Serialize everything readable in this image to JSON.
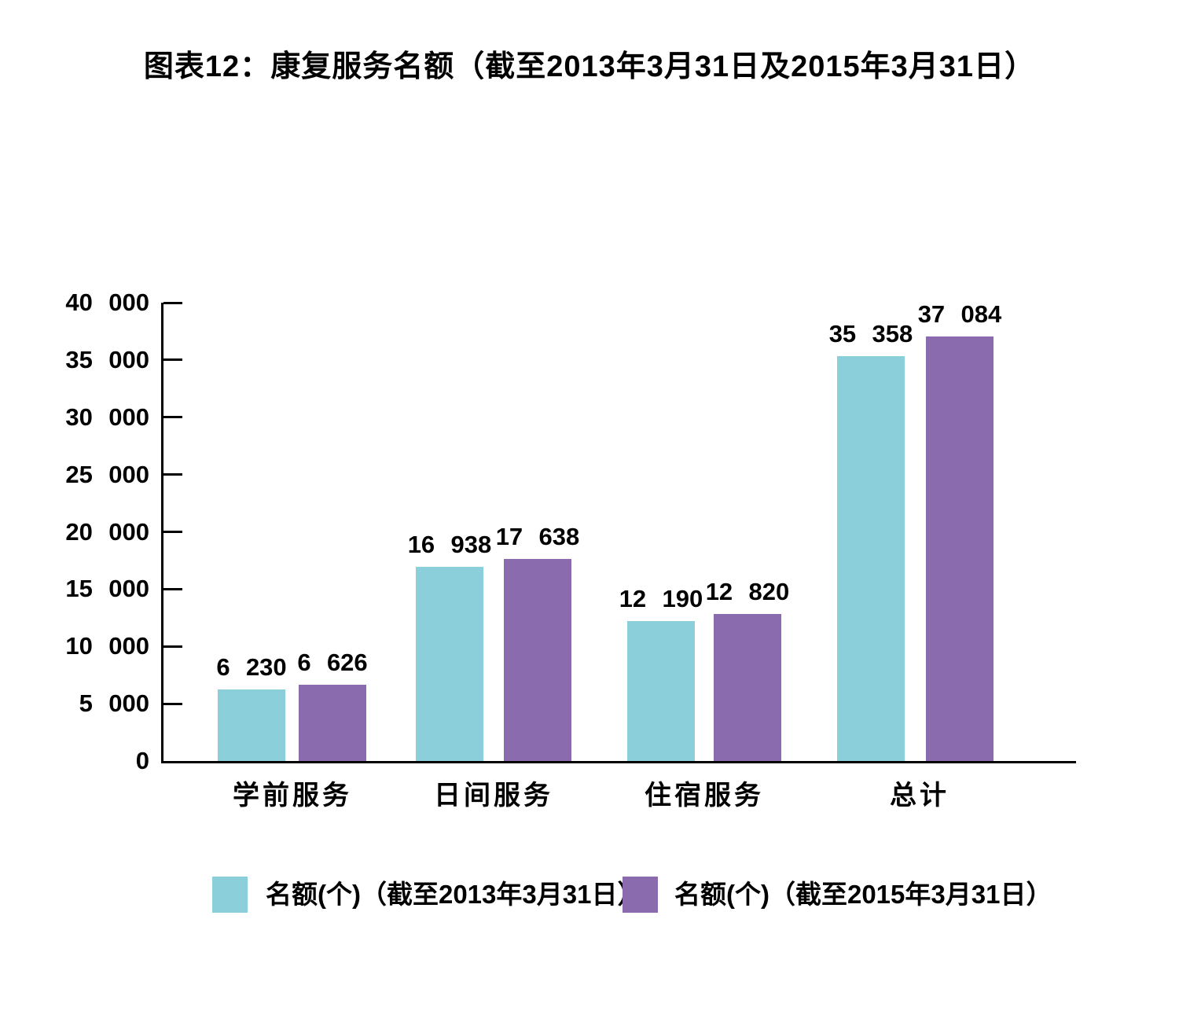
{
  "title": "图表12：康复服务名额（截至2013年3月31日及2015年3月31日）",
  "colors": {
    "series_2013": "#8BCFDA",
    "series_2015": "#8A6BAE",
    "axis": "#000000",
    "text": "#000000",
    "background": "#FFFFFF"
  },
  "chart_data": {
    "type": "bar",
    "title": "图表12：康复服务名额（截至2013年3月31日及2015年3月31日）",
    "categories": [
      "学前服务",
      "日间服务",
      "住宿服务",
      "总计"
    ],
    "series": [
      {
        "name": "名额(个)（截至2013年3月31日）",
        "color": "#8BCFDA",
        "values": [
          6230,
          16938,
          12190,
          35358
        ],
        "value_labels": [
          "6 230",
          "16 938",
          "12 190",
          "35 358"
        ]
      },
      {
        "name": "名额(个)（截至2015年3月31日）",
        "color": "#8A6BAE",
        "values": [
          6626,
          17638,
          12820,
          37084
        ],
        "value_labels": [
          "6 626",
          "17 638",
          "12 820",
          "37 084"
        ]
      }
    ],
    "xlabel": "",
    "ylabel": "",
    "ylim": [
      0,
      40000
    ],
    "ytick_interval": 5000,
    "ytick_labels": [
      "0",
      "5 000",
      "10 000",
      "15 000",
      "20 000",
      "25 000",
      "30 000",
      "35 000",
      "40 000"
    ],
    "grid": false,
    "legend_position": "bottom"
  }
}
